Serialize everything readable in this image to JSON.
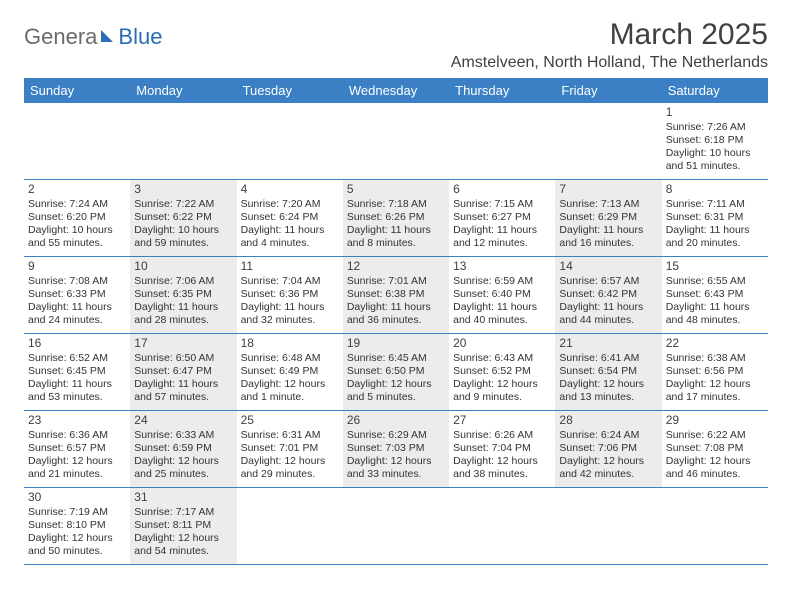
{
  "logo": {
    "general": "Genera",
    "blue": "Blue"
  },
  "header": {
    "title": "March 2025",
    "location": "Amstelveen, North Holland, The Netherlands"
  },
  "colors": {
    "header_bg": "#3b7fc4",
    "shade": "#ececec",
    "row_border": "#3b7fc4"
  },
  "weekdays": [
    "Sunday",
    "Monday",
    "Tuesday",
    "Wednesday",
    "Thursday",
    "Friday",
    "Saturday"
  ],
  "weeks": [
    [
      null,
      null,
      null,
      null,
      null,
      null,
      {
        "n": "1",
        "sunrise": "Sunrise: 7:26 AM",
        "sunset": "Sunset: 6:18 PM",
        "day1": "Daylight: 10 hours",
        "day2": "and 51 minutes.",
        "shade": false
      }
    ],
    [
      {
        "n": "2",
        "sunrise": "Sunrise: 7:24 AM",
        "sunset": "Sunset: 6:20 PM",
        "day1": "Daylight: 10 hours",
        "day2": "and 55 minutes.",
        "shade": false
      },
      {
        "n": "3",
        "sunrise": "Sunrise: 7:22 AM",
        "sunset": "Sunset: 6:22 PM",
        "day1": "Daylight: 10 hours",
        "day2": "and 59 minutes.",
        "shade": true
      },
      {
        "n": "4",
        "sunrise": "Sunrise: 7:20 AM",
        "sunset": "Sunset: 6:24 PM",
        "day1": "Daylight: 11 hours",
        "day2": "and 4 minutes.",
        "shade": false
      },
      {
        "n": "5",
        "sunrise": "Sunrise: 7:18 AM",
        "sunset": "Sunset: 6:26 PM",
        "day1": "Daylight: 11 hours",
        "day2": "and 8 minutes.",
        "shade": true
      },
      {
        "n": "6",
        "sunrise": "Sunrise: 7:15 AM",
        "sunset": "Sunset: 6:27 PM",
        "day1": "Daylight: 11 hours",
        "day2": "and 12 minutes.",
        "shade": false
      },
      {
        "n": "7",
        "sunrise": "Sunrise: 7:13 AM",
        "sunset": "Sunset: 6:29 PM",
        "day1": "Daylight: 11 hours",
        "day2": "and 16 minutes.",
        "shade": true
      },
      {
        "n": "8",
        "sunrise": "Sunrise: 7:11 AM",
        "sunset": "Sunset: 6:31 PM",
        "day1": "Daylight: 11 hours",
        "day2": "and 20 minutes.",
        "shade": false
      }
    ],
    [
      {
        "n": "9",
        "sunrise": "Sunrise: 7:08 AM",
        "sunset": "Sunset: 6:33 PM",
        "day1": "Daylight: 11 hours",
        "day2": "and 24 minutes.",
        "shade": false
      },
      {
        "n": "10",
        "sunrise": "Sunrise: 7:06 AM",
        "sunset": "Sunset: 6:35 PM",
        "day1": "Daylight: 11 hours",
        "day2": "and 28 minutes.",
        "shade": true
      },
      {
        "n": "11",
        "sunrise": "Sunrise: 7:04 AM",
        "sunset": "Sunset: 6:36 PM",
        "day1": "Daylight: 11 hours",
        "day2": "and 32 minutes.",
        "shade": false
      },
      {
        "n": "12",
        "sunrise": "Sunrise: 7:01 AM",
        "sunset": "Sunset: 6:38 PM",
        "day1": "Daylight: 11 hours",
        "day2": "and 36 minutes.",
        "shade": true
      },
      {
        "n": "13",
        "sunrise": "Sunrise: 6:59 AM",
        "sunset": "Sunset: 6:40 PM",
        "day1": "Daylight: 11 hours",
        "day2": "and 40 minutes.",
        "shade": false
      },
      {
        "n": "14",
        "sunrise": "Sunrise: 6:57 AM",
        "sunset": "Sunset: 6:42 PM",
        "day1": "Daylight: 11 hours",
        "day2": "and 44 minutes.",
        "shade": true
      },
      {
        "n": "15",
        "sunrise": "Sunrise: 6:55 AM",
        "sunset": "Sunset: 6:43 PM",
        "day1": "Daylight: 11 hours",
        "day2": "and 48 minutes.",
        "shade": false
      }
    ],
    [
      {
        "n": "16",
        "sunrise": "Sunrise: 6:52 AM",
        "sunset": "Sunset: 6:45 PM",
        "day1": "Daylight: 11 hours",
        "day2": "and 53 minutes.",
        "shade": false
      },
      {
        "n": "17",
        "sunrise": "Sunrise: 6:50 AM",
        "sunset": "Sunset: 6:47 PM",
        "day1": "Daylight: 11 hours",
        "day2": "and 57 minutes.",
        "shade": true
      },
      {
        "n": "18",
        "sunrise": "Sunrise: 6:48 AM",
        "sunset": "Sunset: 6:49 PM",
        "day1": "Daylight: 12 hours",
        "day2": "and 1 minute.",
        "shade": false
      },
      {
        "n": "19",
        "sunrise": "Sunrise: 6:45 AM",
        "sunset": "Sunset: 6:50 PM",
        "day1": "Daylight: 12 hours",
        "day2": "and 5 minutes.",
        "shade": true
      },
      {
        "n": "20",
        "sunrise": "Sunrise: 6:43 AM",
        "sunset": "Sunset: 6:52 PM",
        "day1": "Daylight: 12 hours",
        "day2": "and 9 minutes.",
        "shade": false
      },
      {
        "n": "21",
        "sunrise": "Sunrise: 6:41 AM",
        "sunset": "Sunset: 6:54 PM",
        "day1": "Daylight: 12 hours",
        "day2": "and 13 minutes.",
        "shade": true
      },
      {
        "n": "22",
        "sunrise": "Sunrise: 6:38 AM",
        "sunset": "Sunset: 6:56 PM",
        "day1": "Daylight: 12 hours",
        "day2": "and 17 minutes.",
        "shade": false
      }
    ],
    [
      {
        "n": "23",
        "sunrise": "Sunrise: 6:36 AM",
        "sunset": "Sunset: 6:57 PM",
        "day1": "Daylight: 12 hours",
        "day2": "and 21 minutes.",
        "shade": false
      },
      {
        "n": "24",
        "sunrise": "Sunrise: 6:33 AM",
        "sunset": "Sunset: 6:59 PM",
        "day1": "Daylight: 12 hours",
        "day2": "and 25 minutes.",
        "shade": true
      },
      {
        "n": "25",
        "sunrise": "Sunrise: 6:31 AM",
        "sunset": "Sunset: 7:01 PM",
        "day1": "Daylight: 12 hours",
        "day2": "and 29 minutes.",
        "shade": false
      },
      {
        "n": "26",
        "sunrise": "Sunrise: 6:29 AM",
        "sunset": "Sunset: 7:03 PM",
        "day1": "Daylight: 12 hours",
        "day2": "and 33 minutes.",
        "shade": true
      },
      {
        "n": "27",
        "sunrise": "Sunrise: 6:26 AM",
        "sunset": "Sunset: 7:04 PM",
        "day1": "Daylight: 12 hours",
        "day2": "and 38 minutes.",
        "shade": false
      },
      {
        "n": "28",
        "sunrise": "Sunrise: 6:24 AM",
        "sunset": "Sunset: 7:06 PM",
        "day1": "Daylight: 12 hours",
        "day2": "and 42 minutes.",
        "shade": true
      },
      {
        "n": "29",
        "sunrise": "Sunrise: 6:22 AM",
        "sunset": "Sunset: 7:08 PM",
        "day1": "Daylight: 12 hours",
        "day2": "and 46 minutes.",
        "shade": false
      }
    ],
    [
      {
        "n": "30",
        "sunrise": "Sunrise: 7:19 AM",
        "sunset": "Sunset: 8:10 PM",
        "day1": "Daylight: 12 hours",
        "day2": "and 50 minutes.",
        "shade": false
      },
      {
        "n": "31",
        "sunrise": "Sunrise: 7:17 AM",
        "sunset": "Sunset: 8:11 PM",
        "day1": "Daylight: 12 hours",
        "day2": "and 54 minutes.",
        "shade": true
      },
      null,
      null,
      null,
      null,
      null
    ]
  ]
}
